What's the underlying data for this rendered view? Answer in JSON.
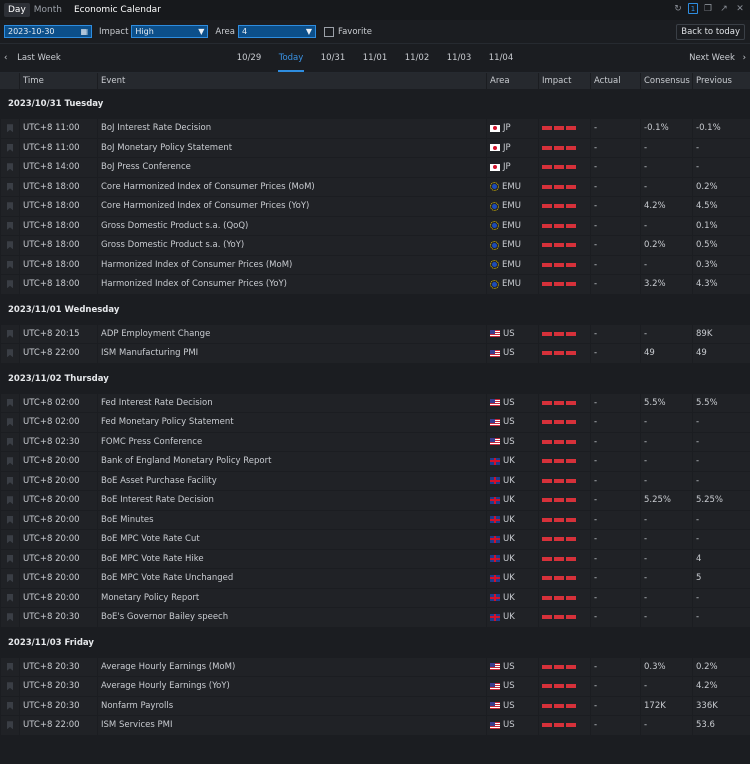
{
  "titlebar": {
    "tab_day": "Day",
    "tab_month": "Month",
    "title": "Economic Calendar",
    "badge": "1"
  },
  "filters": {
    "date": "2023-10-30",
    "impact_label": "Impact",
    "impact_value": "High",
    "area_label": "Area",
    "area_value": "4",
    "favorite_label": "Favorite",
    "back_today": "Back to today"
  },
  "weeknav": {
    "prev": "Last Week",
    "next": "Next Week",
    "days": [
      "10/29",
      "Today",
      "10/31",
      "11/01",
      "11/02",
      "11/03",
      "11/04"
    ],
    "active": "Today"
  },
  "columns": {
    "time": "Time",
    "event": "Event",
    "area": "Area",
    "impact": "Impact",
    "actual": "Actual",
    "consensus": "Consensus",
    "previous": "Previous"
  },
  "colors": {
    "accent": "#2e8de0",
    "impact_high": "#d6313a"
  },
  "groups": [
    {
      "date": "2023/10/31 Tuesday",
      "rows": [
        {
          "time": "UTC+8 11:00",
          "event": "BoJ Interest Rate Decision",
          "area": "JP",
          "actual": "-",
          "consensus": "-0.1%",
          "previous": "-0.1%"
        },
        {
          "time": "UTC+8 11:00",
          "event": "BoJ Monetary Policy Statement",
          "area": "JP",
          "actual": "-",
          "consensus": "-",
          "previous": "-"
        },
        {
          "time": "UTC+8 14:00",
          "event": "BoJ Press Conference",
          "area": "JP",
          "actual": "-",
          "consensus": "-",
          "previous": "-"
        },
        {
          "time": "UTC+8 18:00",
          "event": "Core Harmonized Index of Consumer Prices (MoM)",
          "area": "EMU",
          "actual": "-",
          "consensus": "-",
          "previous": "0.2%"
        },
        {
          "time": "UTC+8 18:00",
          "event": "Core Harmonized Index of Consumer Prices (YoY)",
          "area": "EMU",
          "actual": "-",
          "consensus": "4.2%",
          "previous": "4.5%"
        },
        {
          "time": "UTC+8 18:00",
          "event": "Gross Domestic Product s.a. (QoQ)",
          "area": "EMU",
          "actual": "-",
          "consensus": "-",
          "previous": "0.1%"
        },
        {
          "time": "UTC+8 18:00",
          "event": "Gross Domestic Product s.a. (YoY)",
          "area": "EMU",
          "actual": "-",
          "consensus": "0.2%",
          "previous": "0.5%"
        },
        {
          "time": "UTC+8 18:00",
          "event": "Harmonized Index of Consumer Prices (MoM)",
          "area": "EMU",
          "actual": "-",
          "consensus": "-",
          "previous": "0.3%"
        },
        {
          "time": "UTC+8 18:00",
          "event": "Harmonized Index of Consumer Prices (YoY)",
          "area": "EMU",
          "actual": "-",
          "consensus": "3.2%",
          "previous": "4.3%"
        }
      ]
    },
    {
      "date": "2023/11/01 Wednesday",
      "rows": [
        {
          "time": "UTC+8 20:15",
          "event": "ADP Employment Change",
          "area": "US",
          "actual": "-",
          "consensus": "-",
          "previous": "89K"
        },
        {
          "time": "UTC+8 22:00",
          "event": "ISM Manufacturing PMI",
          "area": "US",
          "actual": "-",
          "consensus": "49",
          "previous": "49"
        }
      ]
    },
    {
      "date": "2023/11/02 Thursday",
      "rows": [
        {
          "time": "UTC+8 02:00",
          "event": "Fed Interest Rate Decision",
          "area": "US",
          "actual": "-",
          "consensus": "5.5%",
          "previous": "5.5%"
        },
        {
          "time": "UTC+8 02:00",
          "event": "Fed Monetary Policy Statement",
          "area": "US",
          "actual": "-",
          "consensus": "-",
          "previous": "-"
        },
        {
          "time": "UTC+8 02:30",
          "event": "FOMC Press Conference",
          "area": "US",
          "actual": "-",
          "consensus": "-",
          "previous": "-"
        },
        {
          "time": "UTC+8 20:00",
          "event": "Bank of England Monetary Policy Report",
          "area": "UK",
          "actual": "-",
          "consensus": "-",
          "previous": "-"
        },
        {
          "time": "UTC+8 20:00",
          "event": "BoE Asset Purchase Facility",
          "area": "UK",
          "actual": "-",
          "consensus": "-",
          "previous": "-"
        },
        {
          "time": "UTC+8 20:00",
          "event": "BoE Interest Rate Decision",
          "area": "UK",
          "actual": "-",
          "consensus": "5.25%",
          "previous": "5.25%"
        },
        {
          "time": "UTC+8 20:00",
          "event": "BoE Minutes",
          "area": "UK",
          "actual": "-",
          "consensus": "-",
          "previous": "-"
        },
        {
          "time": "UTC+8 20:00",
          "event": "BoE MPC Vote Rate Cut",
          "area": "UK",
          "actual": "-",
          "consensus": "-",
          "previous": "-"
        },
        {
          "time": "UTC+8 20:00",
          "event": "BoE MPC Vote Rate Hike",
          "area": "UK",
          "actual": "-",
          "consensus": "-",
          "previous": "4"
        },
        {
          "time": "UTC+8 20:00",
          "event": "BoE MPC Vote Rate Unchanged",
          "area": "UK",
          "actual": "-",
          "consensus": "-",
          "previous": "5"
        },
        {
          "time": "UTC+8 20:00",
          "event": "Monetary Policy Report",
          "area": "UK",
          "actual": "-",
          "consensus": "-",
          "previous": "-"
        },
        {
          "time": "UTC+8 20:30",
          "event": "BoE's Governor Bailey speech",
          "area": "UK",
          "actual": "-",
          "consensus": "-",
          "previous": "-"
        }
      ]
    },
    {
      "date": "2023/11/03 Friday",
      "rows": [
        {
          "time": "UTC+8 20:30",
          "event": "Average Hourly Earnings (MoM)",
          "area": "US",
          "actual": "-",
          "consensus": "0.3%",
          "previous": "0.2%"
        },
        {
          "time": "UTC+8 20:30",
          "event": "Average Hourly Earnings (YoY)",
          "area": "US",
          "actual": "-",
          "consensus": "-",
          "previous": "4.2%"
        },
        {
          "time": "UTC+8 20:30",
          "event": "Nonfarm Payrolls",
          "area": "US",
          "actual": "-",
          "consensus": "172K",
          "previous": "336K"
        },
        {
          "time": "UTC+8 22:00",
          "event": "ISM Services PMI",
          "area": "US",
          "actual": "-",
          "consensus": "-",
          "previous": "53.6"
        }
      ]
    }
  ]
}
